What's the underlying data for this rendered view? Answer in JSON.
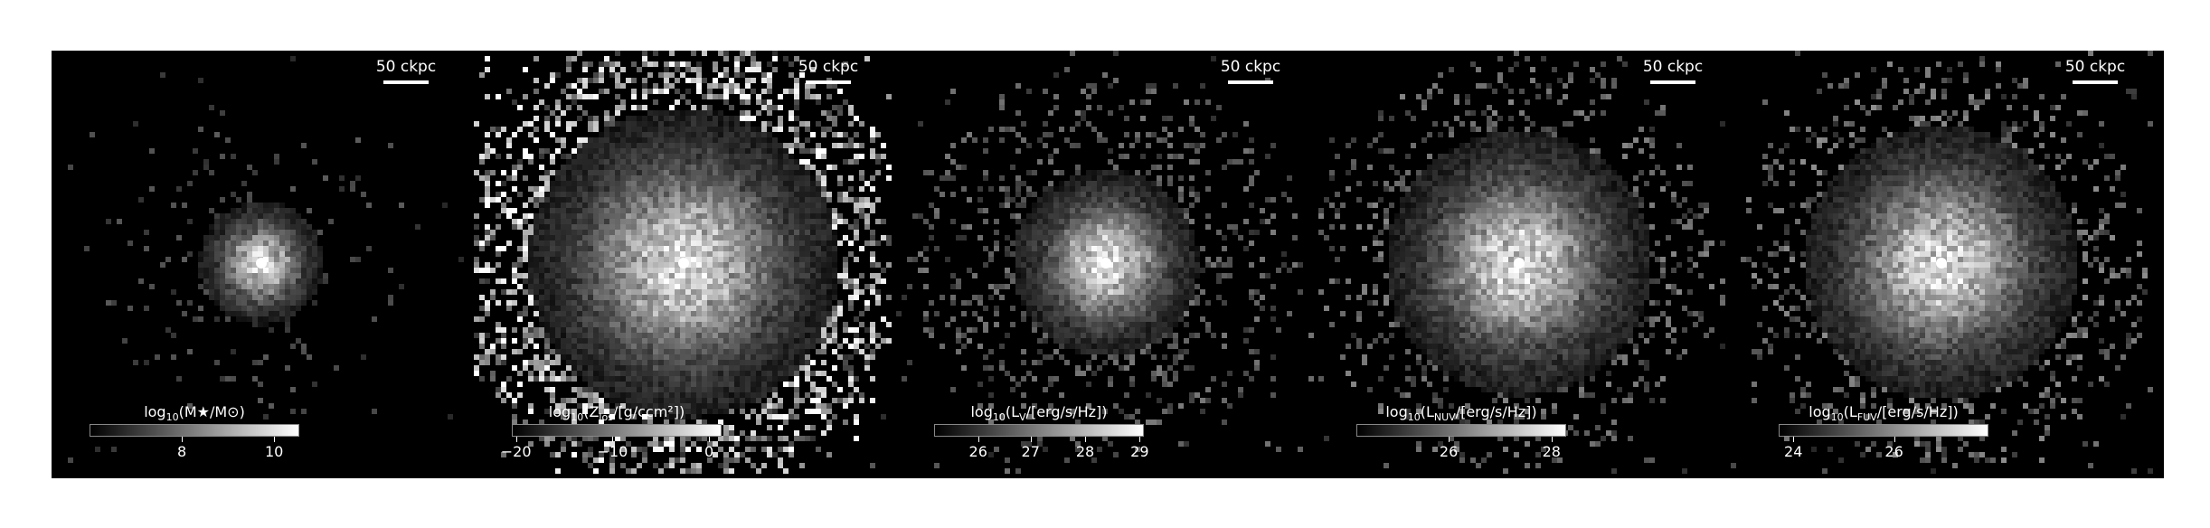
{
  "panels": [
    {
      "scale_label": "50 ckpc",
      "colorbar_label": "log₁₀(M★/M⊙)",
      "ticks": [
        {
          "label": "8",
          "frac": 0.44
        },
        {
          "label": "10",
          "frac": 0.88
        }
      ],
      "map": {
        "seed": 11,
        "core": 1.0,
        "spread": 28,
        "scatter": 0.18,
        "halo": 180,
        "sparse": 0.06
      }
    },
    {
      "scale_label": "50 ckpc",
      "colorbar_label": "log₁₀(Z_los/[g/ccm²])",
      "ticks": [
        {
          "label": "−20",
          "frac": 0.02
        },
        {
          "label": "−10",
          "frac": 0.48
        },
        {
          "label": "0",
          "frac": 0.94
        }
      ],
      "map": {
        "seed": 23,
        "core": 1.0,
        "spread": 70,
        "scatter": 0.9,
        "halo": 260,
        "sparse": 0.55
      }
    },
    {
      "scale_label": "50 ckpc",
      "colorbar_label": "log₁₀(L_V/[erg/s/Hz])",
      "ticks": [
        {
          "label": "26",
          "frac": 0.21
        },
        {
          "label": "27",
          "frac": 0.46
        },
        {
          "label": "28",
          "frac": 0.72
        },
        {
          "label": "29",
          "frac": 0.98
        }
      ],
      "map": {
        "seed": 37,
        "core": 1.0,
        "spread": 42,
        "scatter": 0.3,
        "halo": 220,
        "sparse": 0.22
      }
    },
    {
      "scale_label": "50 ckpc",
      "colorbar_label": "log₁₀(L_NUV/[erg/s/Hz])",
      "ticks": [
        {
          "label": "26",
          "frac": 0.44
        },
        {
          "label": "28",
          "frac": 0.93
        }
      ],
      "map": {
        "seed": 53,
        "core": 1.0,
        "spread": 60,
        "scatter": 0.35,
        "halo": 230,
        "sparse": 0.26
      }
    },
    {
      "scale_label": "50 ckpc",
      "colorbar_label": "log₁₀(L_FUV/[erg/s/Hz])",
      "ticks": [
        {
          "label": "24",
          "frac": 0.07
        },
        {
          "label": "26",
          "frac": 0.55
        }
      ],
      "map": {
        "seed": 71,
        "core": 1.0,
        "spread": 62,
        "scatter": 0.38,
        "halo": 230,
        "sparse": 0.28
      }
    }
  ]
}
